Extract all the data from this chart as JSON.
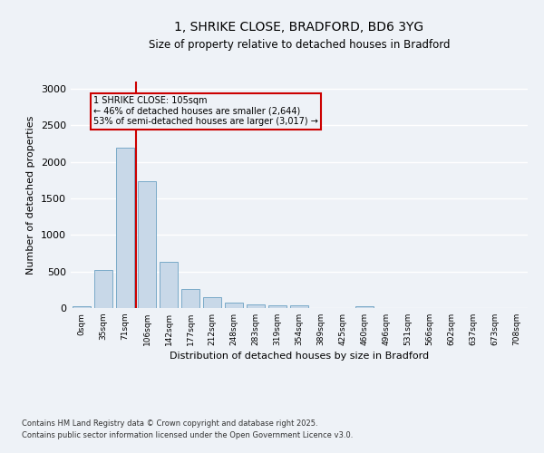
{
  "title_line1": "1, SHRIKE CLOSE, BRADFORD, BD6 3YG",
  "title_line2": "Size of property relative to detached houses in Bradford",
  "xlabel": "Distribution of detached houses by size in Bradford",
  "ylabel": "Number of detached properties",
  "categories": [
    "0sqm",
    "35sqm",
    "71sqm",
    "106sqm",
    "142sqm",
    "177sqm",
    "212sqm",
    "248sqm",
    "283sqm",
    "319sqm",
    "354sqm",
    "389sqm",
    "425sqm",
    "460sqm",
    "496sqm",
    "531sqm",
    "566sqm",
    "602sqm",
    "637sqm",
    "673sqm",
    "708sqm"
  ],
  "values": [
    20,
    520,
    2200,
    1740,
    630,
    260,
    150,
    75,
    45,
    40,
    35,
    3,
    2,
    20,
    2,
    1,
    0,
    1,
    0,
    0,
    0
  ],
  "bar_color": "#c8d8e8",
  "bar_edge_color": "#7aaac8",
  "vline_color": "#cc0000",
  "annotation_text": "1 SHRIKE CLOSE: 105sqm\n← 46% of detached houses are smaller (2,644)\n53% of semi-detached houses are larger (3,017) →",
  "annotation_box_color": "#cc0000",
  "ylim": [
    0,
    3100
  ],
  "yticks": [
    0,
    500,
    1000,
    1500,
    2000,
    2500,
    3000
  ],
  "footnote1": "Contains HM Land Registry data © Crown copyright and database right 2025.",
  "footnote2": "Contains public sector information licensed under the Open Government Licence v3.0.",
  "background_color": "#eef2f7",
  "grid_color": "#ffffff"
}
